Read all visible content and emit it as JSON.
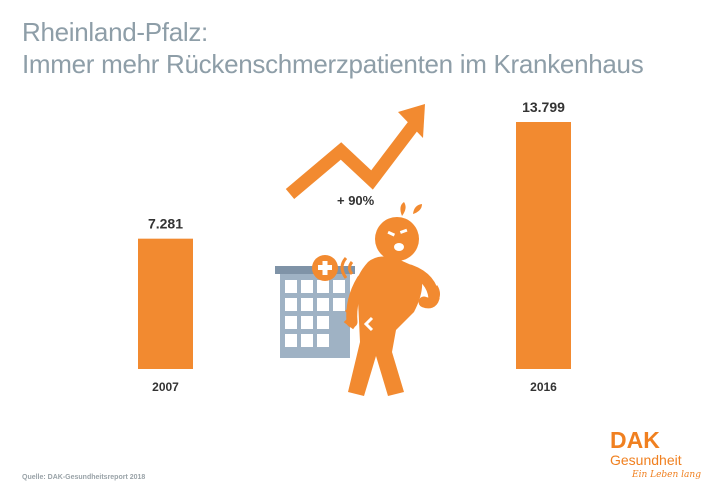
{
  "title": {
    "line1": "Rheinland-Pfalz:",
    "line2": "Immer mehr Rückenschmerzpatienten im Krankenhaus"
  },
  "chart_data": {
    "type": "bar",
    "categories": [
      "2007",
      "2016"
    ],
    "values": [
      7281,
      13799
    ],
    "value_labels": [
      "7.281",
      "13.799"
    ],
    "ylim": [
      0,
      13799
    ],
    "grid": false,
    "bar_color": "#f28a30",
    "annotation": "+ 90%"
  },
  "source": "Quelle: DAK-Gesundheitsreport 2018",
  "logo": {
    "brand": "DAK",
    "name": "Gesundheit",
    "tagline": "Ein Leben lang"
  },
  "colors": {
    "accent": "#f28a30",
    "title": "#8e9ea8",
    "building": "#8fa3b5"
  },
  "illustration": {
    "icons": [
      "trend-arrow-icon",
      "hospital-building-icon",
      "medical-cross-icon",
      "person-back-pain-icon"
    ]
  }
}
